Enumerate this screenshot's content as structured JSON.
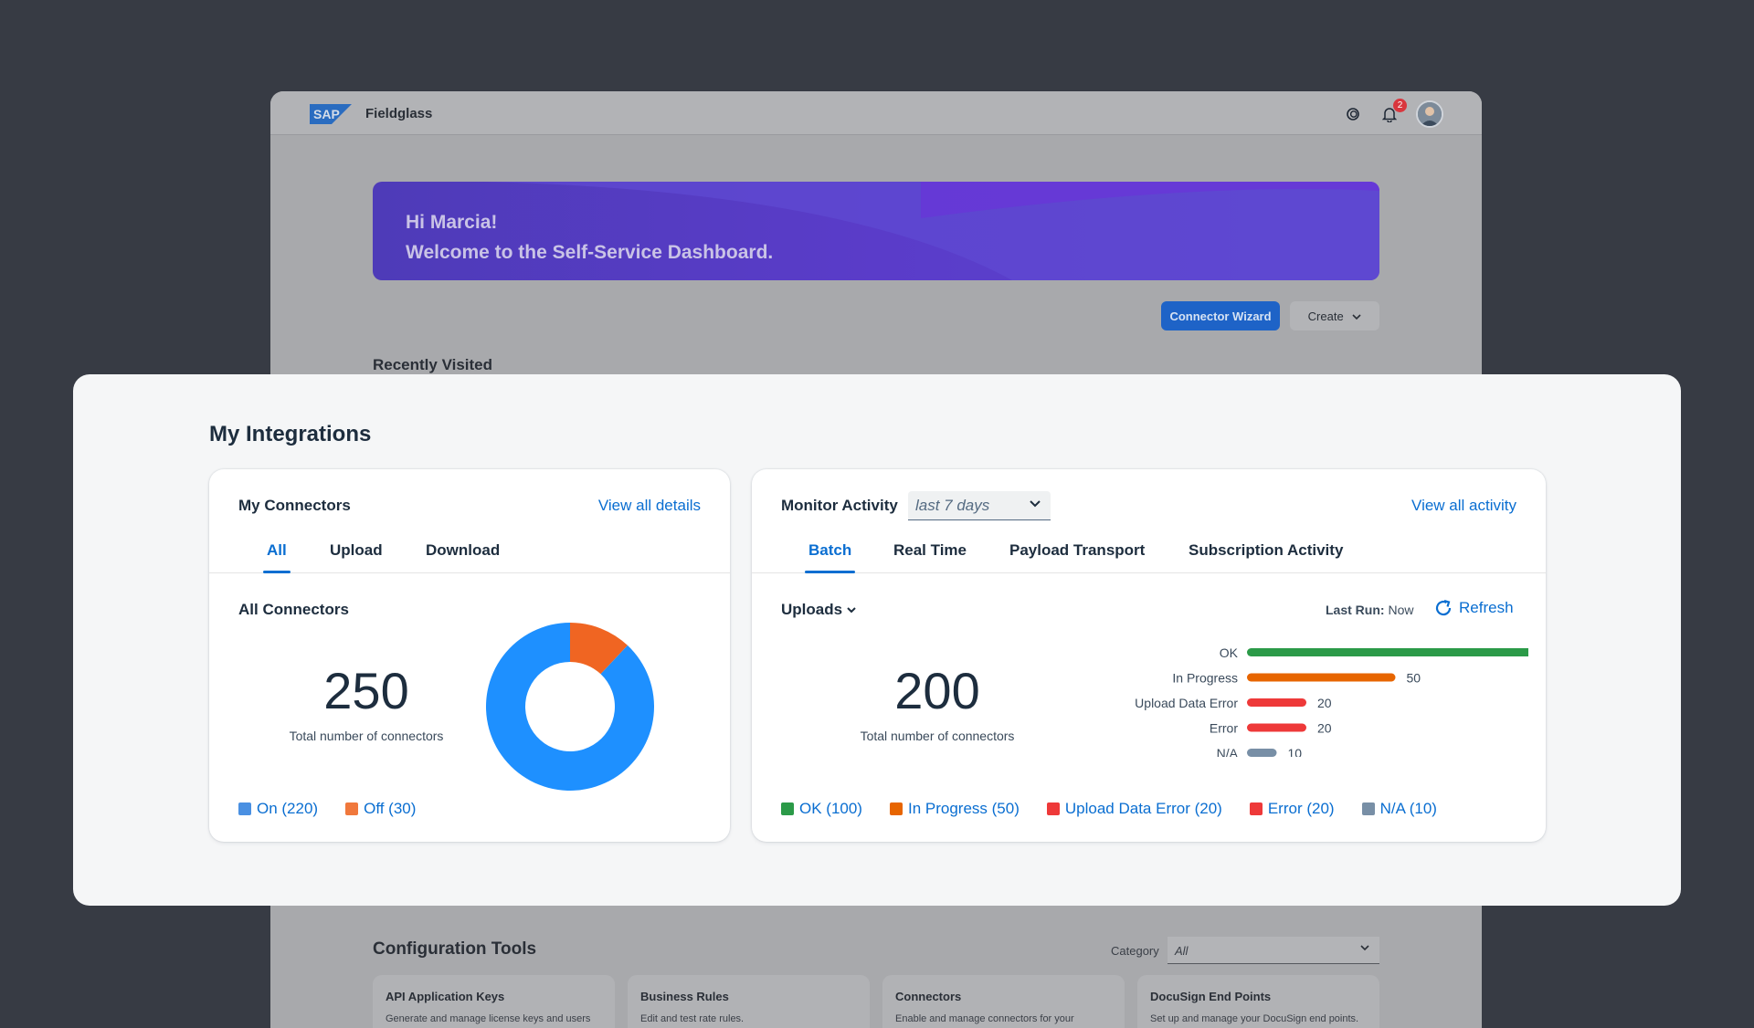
{
  "shell": {
    "app_name": "Fieldglass",
    "notification_count": "2"
  },
  "hero": {
    "line1": "Hi Marcia!",
    "line2": "Welcome to the Self-Service Dashboard."
  },
  "actions": {
    "connector_wizard": "Connector Wizard",
    "create": "Create"
  },
  "recently_visited": "Recently Visited",
  "panel": {
    "title": "My Integrations"
  },
  "connectors": {
    "title": "My Connectors",
    "link": "View all details",
    "tabs": [
      "All",
      "Upload",
      "Download"
    ],
    "active_tab": "All",
    "subtitle": "All Connectors",
    "total": "250",
    "total_caption": "Total number of connectors",
    "legend": [
      "On (220)",
      "Off (30)"
    ]
  },
  "monitor": {
    "title": "Monitor Activity",
    "period": "last 7 days",
    "link": "View all activity",
    "tabs": [
      "Batch",
      "Real Time",
      "Payload Transport",
      "Subscription Activity"
    ],
    "active_tab": "Batch",
    "uploads_label": "Uploads",
    "last_run_label": "Last Run:",
    "last_run_value": "Now",
    "refresh": "Refresh",
    "total": "200",
    "total_caption": "Total number of connectors",
    "legend": [
      "OK (100)",
      "In Progress (50)",
      "Upload Data Error (20)",
      "Error (20)",
      "N/A (10)"
    ]
  },
  "config": {
    "title": "Configuration Tools",
    "category_label": "Category",
    "category_value": "All",
    "cards": [
      {
        "title": "API Application Keys",
        "desc": "Generate and manage license keys and users"
      },
      {
        "title": "Business Rules",
        "desc": "Edit and test rate rules."
      },
      {
        "title": "Connectors",
        "desc": "Enable and manage connectors for your"
      },
      {
        "title": "DocuSign End Points",
        "desc": "Set up and manage your DocuSign end points."
      }
    ]
  },
  "colors": {
    "accent": "#0a6ed1",
    "on": "#1e90ff",
    "off": "#f06522",
    "ok": "#2b9a48",
    "in_progress": "#e76500",
    "upload_error": "#ee3939",
    "error": "#ee3939",
    "na": "#788fa6",
    "hero": "#5a3cc9"
  },
  "chart_data": [
    {
      "type": "pie",
      "variant": "donut",
      "categories": [
        "On",
        "Off"
      ],
      "values": [
        220,
        30
      ],
      "colors": [
        "#1e90ff",
        "#f06522"
      ]
    },
    {
      "type": "bar",
      "orientation": "horizontal",
      "categories": [
        "OK",
        "In Progress",
        "Upload Data Error",
        "Error",
        "N/A"
      ],
      "values": [
        100,
        50,
        20,
        20,
        10
      ],
      "colors": [
        "#2b9a48",
        "#e76500",
        "#ee3939",
        "#ee3939",
        "#788fa6"
      ],
      "xlim": [
        0,
        100
      ]
    }
  ]
}
